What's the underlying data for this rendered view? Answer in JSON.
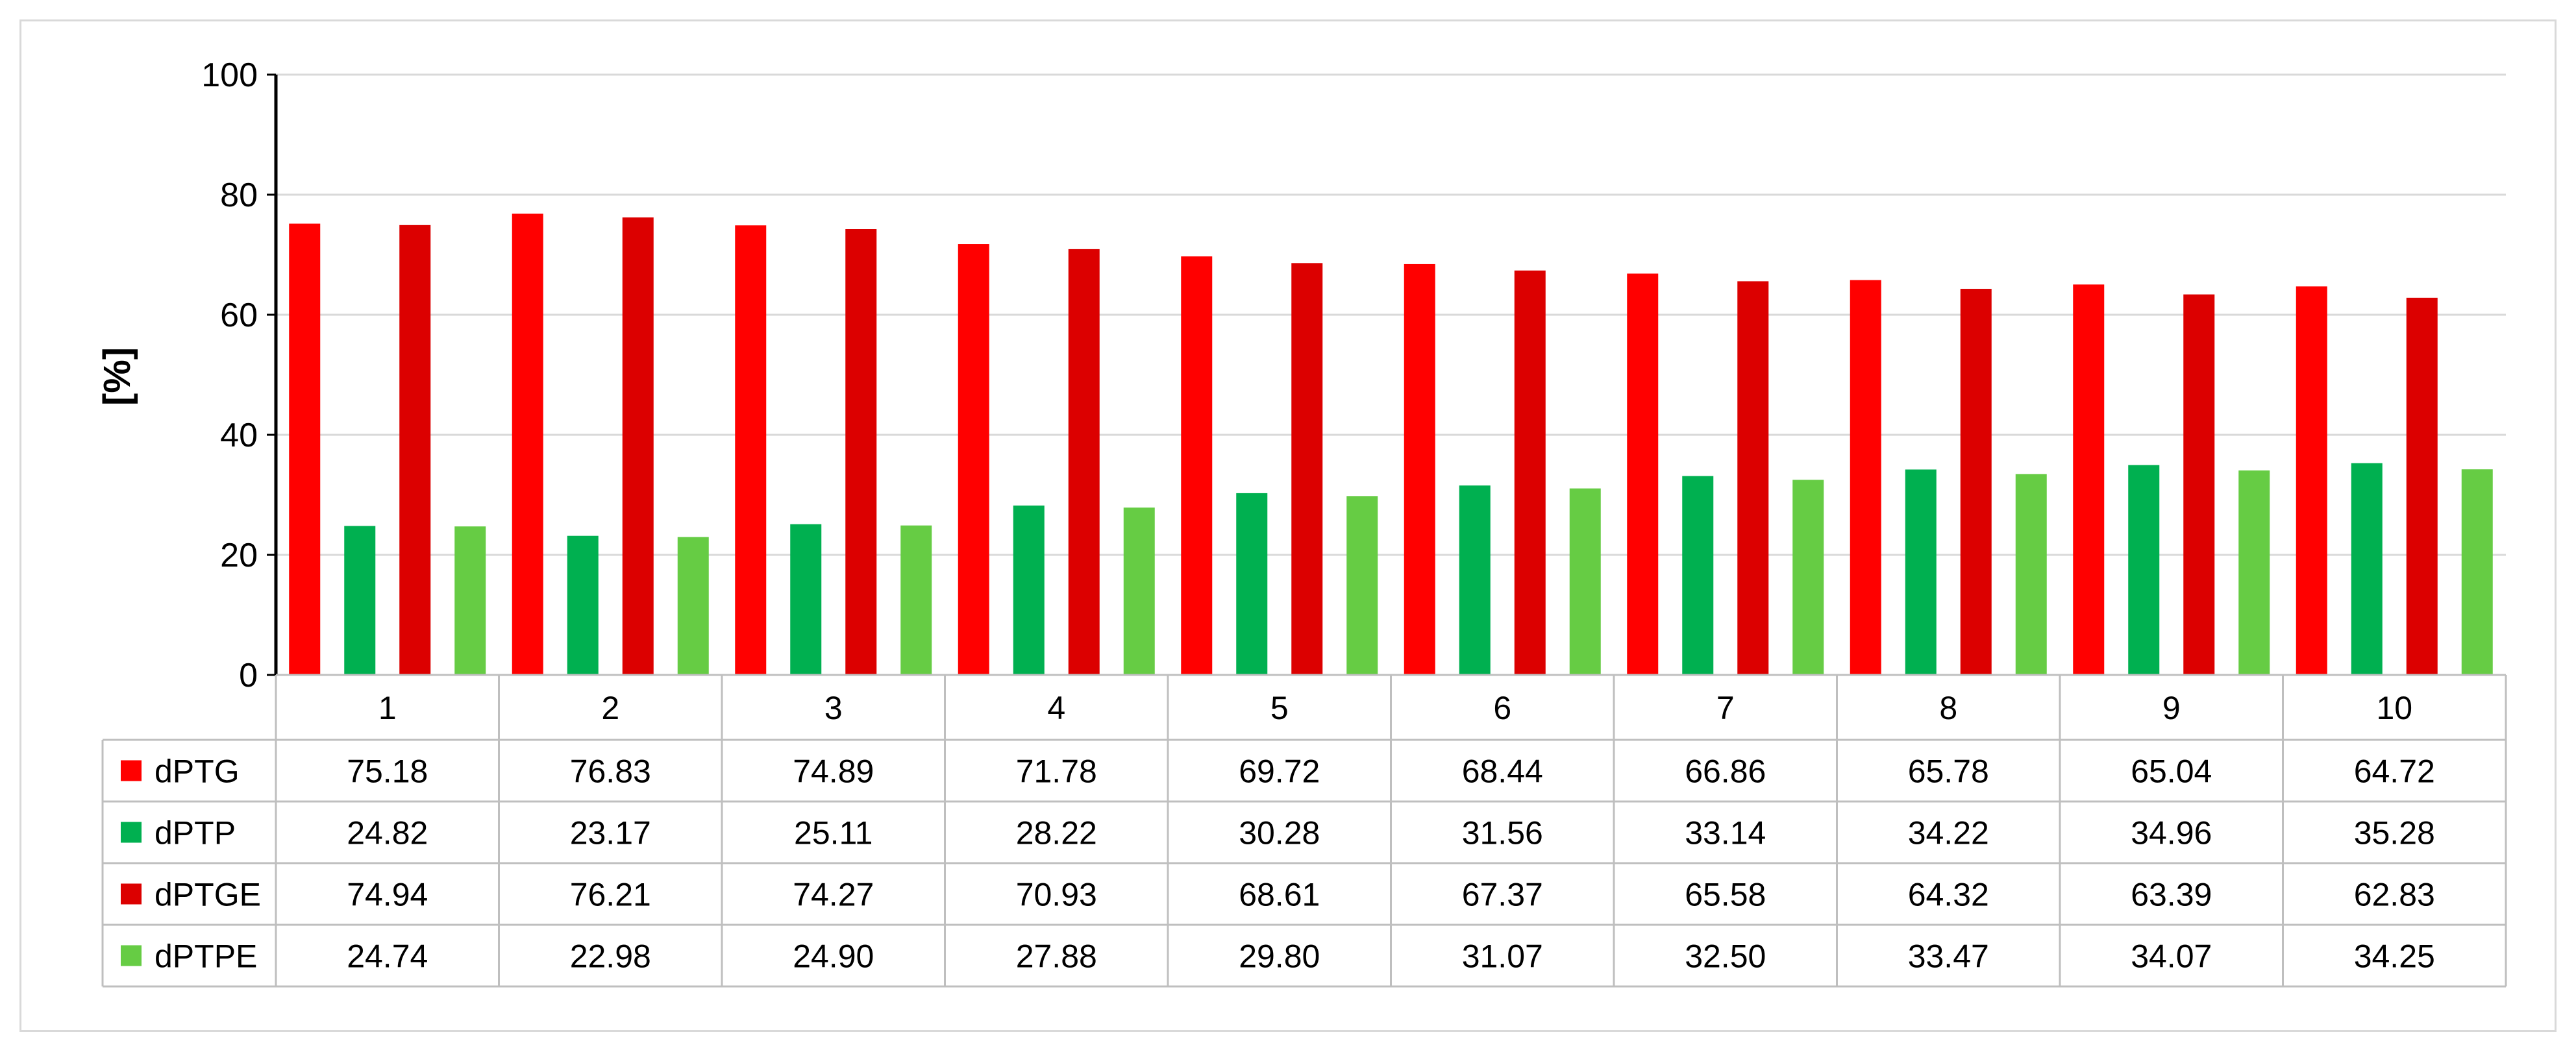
{
  "chart_data": {
    "type": "bar",
    "title": "",
    "xlabel": "",
    "ylabel": "[%]",
    "ylim": [
      0,
      100
    ],
    "yticks": [
      0,
      20,
      40,
      60,
      80,
      100
    ],
    "grid": true,
    "legend": "data-table-left",
    "categories": [
      "1",
      "2",
      "3",
      "4",
      "5",
      "6",
      "7",
      "8",
      "9",
      "10"
    ],
    "series": [
      {
        "name": "dPTG",
        "color": "#ff0000",
        "values": [
          75.18,
          76.83,
          74.89,
          71.78,
          69.72,
          68.44,
          66.86,
          65.78,
          65.04,
          64.72
        ],
        "labels": [
          "75.18",
          "76.83",
          "74.89",
          "71.78",
          "69.72",
          "68.44",
          "66.86",
          "65.78",
          "65.04",
          "64.72"
        ]
      },
      {
        "name": "dPTP",
        "color": "#00b050",
        "values": [
          24.82,
          23.17,
          25.11,
          28.22,
          30.28,
          31.56,
          33.14,
          34.22,
          34.96,
          35.28
        ],
        "labels": [
          "24.82",
          "23.17",
          "25.11",
          "28.22",
          "30.28",
          "31.56",
          "33.14",
          "34.22",
          "34.96",
          "35.28"
        ]
      },
      {
        "name": "dPTGE",
        "color": "#dc0000",
        "values": [
          74.94,
          76.21,
          74.27,
          70.93,
          68.61,
          67.37,
          65.58,
          64.32,
          63.39,
          62.83
        ],
        "labels": [
          "74.94",
          "76.21",
          "74.27",
          "70.93",
          "68.61",
          "67.37",
          "65.58",
          "64.32",
          "63.39",
          "62.83"
        ]
      },
      {
        "name": "dPTPE",
        "color": "#66cc44",
        "values": [
          24.74,
          22.98,
          24.9,
          27.88,
          29.8,
          31.07,
          32.5,
          33.47,
          34.07,
          34.25
        ],
        "labels": [
          "24.74",
          "22.98",
          "24.90",
          "27.88",
          "29.80",
          "31.07",
          "32.50",
          "33.47",
          "34.07",
          "34.25"
        ]
      }
    ]
  }
}
